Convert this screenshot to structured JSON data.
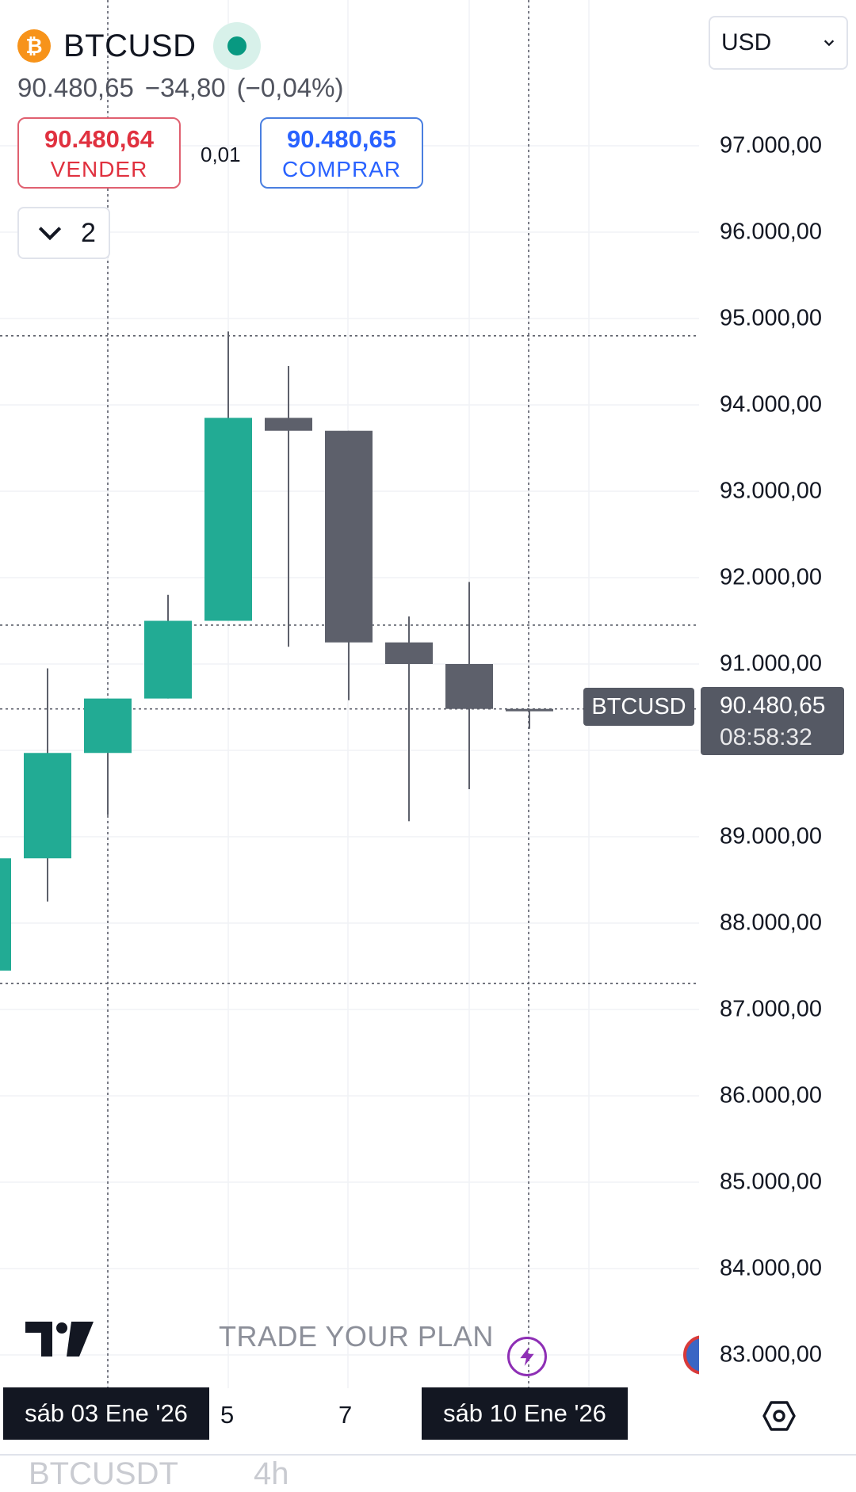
{
  "header": {
    "symbol": "BTCUSD",
    "coin_icon": "bitcoin-icon",
    "price": "90.480,65",
    "change": "−34,80",
    "change_pct": "(−0,04%)",
    "status_color": "#089981"
  },
  "trade": {
    "sell_price": "90.480,64",
    "sell_label": "VENDER",
    "spread": "0,01",
    "buy_price": "90.480,65",
    "buy_label": "COMPRAR"
  },
  "indicators_count": "2",
  "currency_select": "USD",
  "price_axis": {
    "labels": [
      "97.000,00",
      "96.000,00",
      "95.000,00",
      "94.000,00",
      "93.000,00",
      "92.000,00",
      "91.000,00",
      "89.000,00",
      "88.000,00",
      "87.000,00",
      "86.000,00",
      "85.000,00",
      "84.000,00",
      "83.000,00"
    ]
  },
  "current": {
    "symbol_label": "BTCUSD",
    "price": "90.480,65",
    "countdown": "08:58:32"
  },
  "time_axis": {
    "pill_1": "sáb 03 Ene '26",
    "tick_5": "5",
    "tick_7": "7",
    "pill_2": "sáb 10 Ene '26"
  },
  "watermark": {
    "slogan": "TRADE YOUR PLAN"
  },
  "bottom_ghost": {
    "symbol": "BTCUSDT",
    "interval": "4h"
  },
  "colors": {
    "up": "#22ab94",
    "down": "#5d606b",
    "sell": "#e0313f",
    "buy": "#2962ff"
  },
  "chart_data": {
    "type": "candlestick",
    "candles": [
      {
        "open": 87450,
        "high": 88750,
        "low": 87450,
        "close": 88750
      },
      {
        "open": 88750,
        "high": 90950,
        "low": 88250,
        "close": 89970
      },
      {
        "open": 89970,
        "high": 90600,
        "low": 89250,
        "close": 90600
      },
      {
        "open": 90600,
        "high": 91800,
        "low": 90600,
        "close": 91500
      },
      {
        "open": 91500,
        "high": 94850,
        "low": 91500,
        "close": 93850
      },
      {
        "open": 93850,
        "high": 94450,
        "low": 91200,
        "close": 93700
      },
      {
        "open": 93700,
        "high": 93700,
        "low": 90580,
        "close": 91250
      },
      {
        "open": 91250,
        "high": 91550,
        "low": 89180,
        "close": 91000
      },
      {
        "open": 91000,
        "high": 91950,
        "low": 89550,
        "close": 90480
      },
      {
        "open": 90480,
        "high": 90480,
        "low": 90250,
        "close": 90480
      }
    ],
    "reference_lines": [
      94800,
      91450,
      90480,
      87300
    ],
    "current_price": 90480.65,
    "ylim": [
      82500,
      98700
    ]
  }
}
